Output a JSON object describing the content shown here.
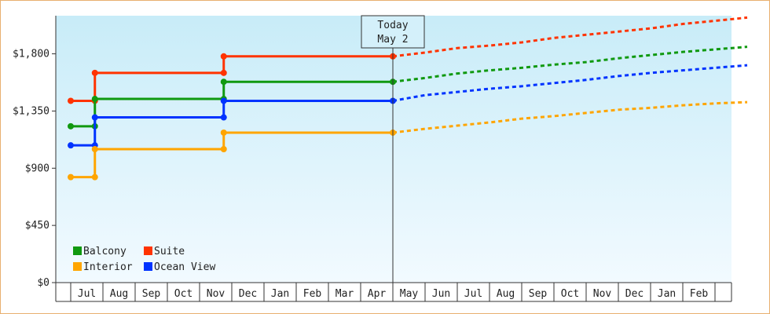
{
  "chart_data": {
    "type": "line",
    "step": true,
    "y_ticks": [
      "$0",
      "$450",
      "$900",
      "$1,350",
      "$1,800"
    ],
    "ylim": [
      0,
      2100
    ],
    "x_months": [
      "",
      "Jul",
      "Aug",
      "Sep",
      "Oct",
      "Nov",
      "Dec",
      "Jan",
      "Feb",
      "Mar",
      "Apr",
      "May",
      "Jun",
      "Jul",
      "Aug",
      "Sep",
      "Oct",
      "Nov",
      "Dec",
      "Jan",
      "Feb",
      ""
    ],
    "today": {
      "line1": "Today",
      "line2": "May 2",
      "x": 10.0
    },
    "grid": false,
    "legend_placement": "bottom-left",
    "series": [
      {
        "name": "Suite",
        "color": "#ff3300",
        "history": [
          [
            0,
            1430
          ],
          [
            0.75,
            1430
          ],
          [
            0.75,
            1650
          ],
          [
            4.75,
            1650
          ],
          [
            4.75,
            1780
          ],
          [
            10.0,
            1780
          ]
        ],
        "forecast": [
          [
            10.0,
            1780
          ],
          [
            11,
            1810
          ],
          [
            12,
            1845
          ],
          [
            13,
            1865
          ],
          [
            14,
            1890
          ],
          [
            15,
            1925
          ],
          [
            16,
            1950
          ],
          [
            17,
            1975
          ],
          [
            18,
            2000
          ],
          [
            19,
            2035
          ],
          [
            20,
            2060
          ],
          [
            21,
            2085
          ]
        ]
      },
      {
        "name": "Balcony",
        "color": "#109910",
        "history": [
          [
            0,
            1230
          ],
          [
            0.75,
            1230
          ],
          [
            0.75,
            1445
          ],
          [
            4.75,
            1445
          ],
          [
            4.75,
            1580
          ],
          [
            10.0,
            1580
          ]
        ],
        "forecast": [
          [
            10.0,
            1580
          ],
          [
            11,
            1610
          ],
          [
            12,
            1645
          ],
          [
            13,
            1670
          ],
          [
            14,
            1690
          ],
          [
            15,
            1715
          ],
          [
            16,
            1735
          ],
          [
            17,
            1765
          ],
          [
            18,
            1790
          ],
          [
            19,
            1815
          ],
          [
            20,
            1835
          ],
          [
            21,
            1855
          ]
        ]
      },
      {
        "name": "Ocean View",
        "color": "#0033ff",
        "history": [
          [
            0,
            1080
          ],
          [
            0.75,
            1080
          ],
          [
            0.75,
            1300
          ],
          [
            4.75,
            1300
          ],
          [
            4.75,
            1430
          ],
          [
            10.0,
            1430
          ]
        ],
        "forecast": [
          [
            10.0,
            1430
          ],
          [
            11,
            1475
          ],
          [
            12,
            1500
          ],
          [
            13,
            1525
          ],
          [
            14,
            1545
          ],
          [
            15,
            1570
          ],
          [
            16,
            1595
          ],
          [
            17,
            1625
          ],
          [
            18,
            1650
          ],
          [
            19,
            1670
          ],
          [
            20,
            1690
          ],
          [
            21,
            1710
          ]
        ]
      },
      {
        "name": "Interior",
        "color": "#ffa500",
        "history": [
          [
            0,
            830
          ],
          [
            0.75,
            830
          ],
          [
            0.75,
            1050
          ],
          [
            4.75,
            1050
          ],
          [
            4.75,
            1180
          ],
          [
            10.0,
            1180
          ]
        ],
        "forecast": [
          [
            10.0,
            1180
          ],
          [
            11,
            1210
          ],
          [
            12,
            1235
          ],
          [
            13,
            1260
          ],
          [
            14,
            1290
          ],
          [
            15,
            1310
          ],
          [
            16,
            1335
          ],
          [
            17,
            1360
          ],
          [
            18,
            1375
          ],
          [
            19,
            1395
          ],
          [
            20,
            1410
          ],
          [
            21,
            1420
          ]
        ]
      }
    ]
  },
  "legend": [
    {
      "name": "Balcony",
      "color": "#109910"
    },
    {
      "name": "Suite",
      "color": "#ff3300"
    },
    {
      "name": "Interior",
      "color": "#ffa500"
    },
    {
      "name": "Ocean View",
      "color": "#0033ff"
    }
  ]
}
